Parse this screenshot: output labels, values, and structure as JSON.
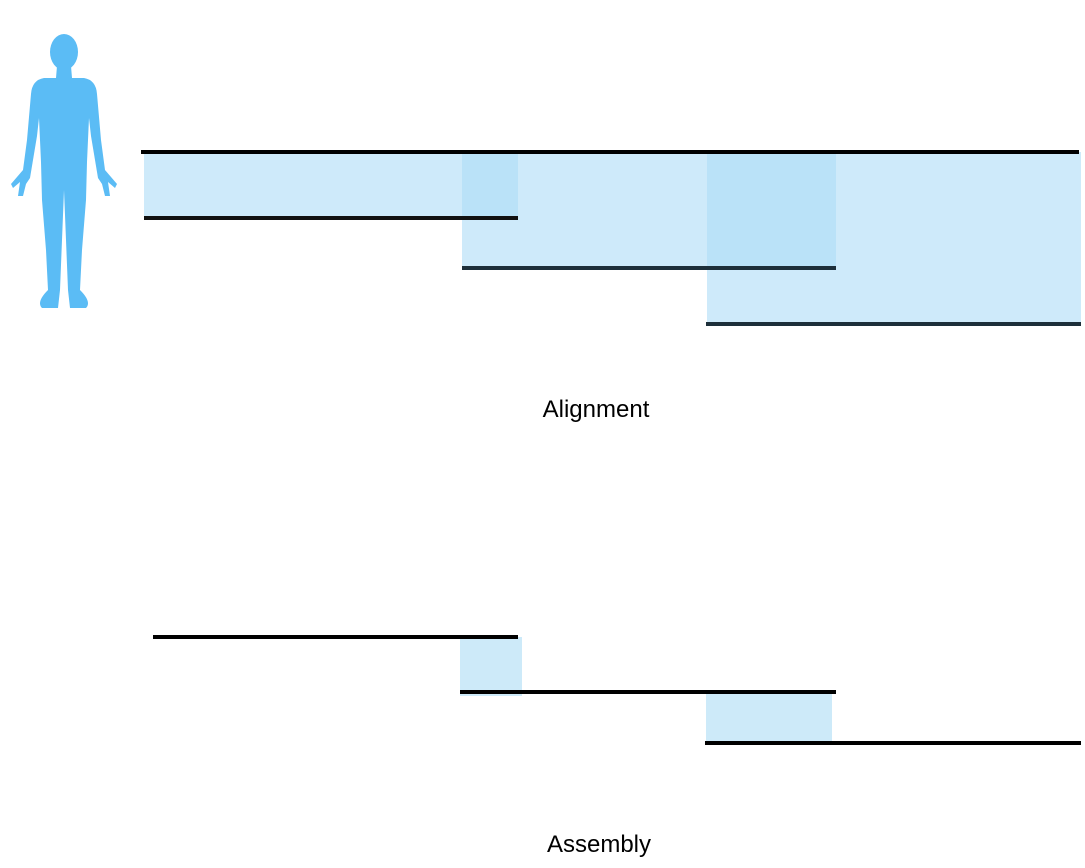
{
  "labels": {
    "alignment": "Alignment",
    "assembly": "Assembly"
  },
  "icons": {
    "figure": "human-body-icon"
  },
  "colors": {
    "figure": "#5bbcf5",
    "overlap_fill": "#cdeaf9",
    "line": "#000000"
  }
}
